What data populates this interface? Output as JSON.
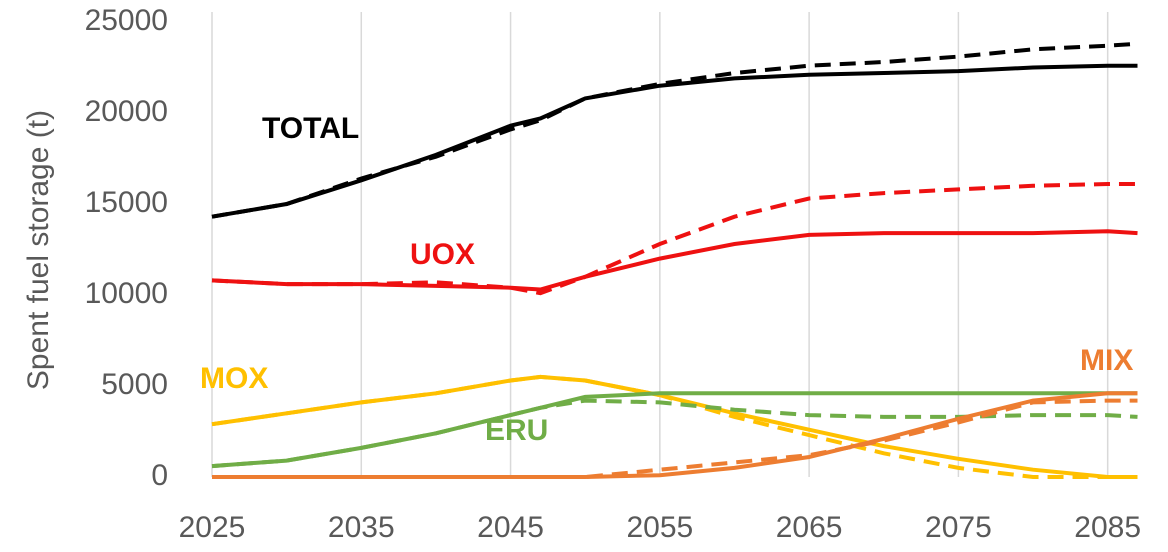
{
  "chart_data": {
    "type": "line",
    "y_label": "Spent fuel storage (t)",
    "x": [
      2025,
      2030,
      2035,
      2040,
      2045,
      2047,
      2050,
      2055,
      2060,
      2065,
      2070,
      2075,
      2080,
      2085,
      2087
    ],
    "xlim": [
      2025,
      2087.5
    ],
    "xticks": [
      2025,
      2035,
      2045,
      2055,
      2065,
      2075,
      2085
    ],
    "ylim": [
      0,
      25000
    ],
    "yticks": [
      0,
      5000,
      10000,
      15000,
      20000,
      25000
    ],
    "grid": "x",
    "series": [
      {
        "name": "TOTAL",
        "color": "#000000",
        "values": [
          14300,
          15000,
          16300,
          17700,
          19300,
          19700,
          20800,
          21500,
          21900,
          22100,
          22200,
          22300,
          22500,
          22600,
          22600
        ],
        "dashed_values": [
          14300,
          15000,
          16400,
          17600,
          19100,
          19600,
          20800,
          21600,
          22200,
          22600,
          22800,
          23100,
          23500,
          23700,
          23800
        ]
      },
      {
        "name": "UOX",
        "color": "#ee1111",
        "values": [
          10800,
          10600,
          10600,
          10500,
          10400,
          10300,
          11000,
          12000,
          12800,
          13300,
          13400,
          13400,
          13400,
          13500,
          13400
        ],
        "dashed_values": [
          10800,
          10600,
          10600,
          10700,
          10400,
          10100,
          11000,
          12800,
          14300,
          15300,
          15600,
          15800,
          16000,
          16100,
          16100
        ]
      },
      {
        "name": "MOX",
        "color": "#ffc000",
        "values": [
          2900,
          3500,
          4100,
          4600,
          5300,
          5500,
          5300,
          4500,
          3500,
          2600,
          1700,
          1000,
          400,
          0,
          0
        ],
        "dashed_values": [
          2900,
          3500,
          4100,
          4600,
          5300,
          5500,
          5300,
          4500,
          3300,
          2300,
          1300,
          500,
          0,
          0,
          0
        ]
      },
      {
        "name": "ERU",
        "color": "#70ad47",
        "values": [
          600,
          900,
          1600,
          2400,
          3400,
          3800,
          4400,
          4600,
          4600,
          4600,
          4600,
          4600,
          4600,
          4600,
          4600
        ],
        "dashed_values": [
          600,
          900,
          1600,
          2400,
          3400,
          3800,
          4200,
          4100,
          3700,
          3400,
          3300,
          3300,
          3400,
          3400,
          3300
        ]
      },
      {
        "name": "MIX",
        "color": "#ed7d31",
        "values": [
          0,
          0,
          0,
          0,
          0,
          0,
          0,
          100,
          500,
          1100,
          2100,
          3200,
          4200,
          4600,
          4600
        ],
        "dashed_values": [
          0,
          0,
          0,
          0,
          0,
          0,
          0,
          400,
          800,
          1200,
          2000,
          3000,
          4100,
          4200,
          4200
        ]
      }
    ]
  }
}
